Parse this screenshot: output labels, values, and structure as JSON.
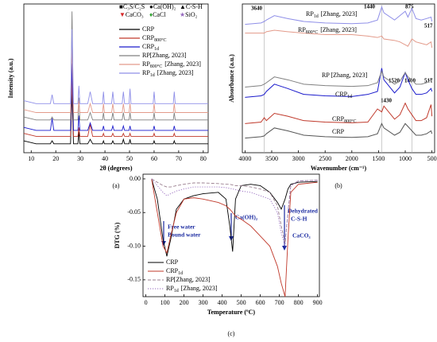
{
  "chart_data": [
    {
      "type": "line",
      "panel_label": "(a)",
      "xlabel": "2θ (degrees)",
      "ylabel": "Intensity (a.u.)",
      "xlim": [
        7,
        82
      ],
      "xticks": [
        10,
        20,
        30,
        40,
        50,
        60,
        70,
        80
      ],
      "ylim": [
        0,
        100
      ],
      "phases": [
        {
          "symbol": "■",
          "label": "C₃S/C₂S",
          "color": "#000000"
        },
        {
          "symbol": "●",
          "label": "Ca(OH)₂",
          "color": "#000000"
        },
        {
          "symbol": "▲",
          "label": "C-S-H",
          "color": "#000000"
        },
        {
          "symbol": "▼",
          "label": "CaCO₃",
          "color": "#d62728"
        },
        {
          "symbol": "♦",
          "label": "CaCl",
          "color": "#2ca02c"
        },
        {
          "symbol": "★",
          "label": "SiO₂",
          "color": "#9467bd"
        }
      ],
      "x": [
        7,
        12,
        17.8,
        18.5,
        19.2,
        26,
        26.6,
        27.2,
        29,
        29.4,
        29.8,
        33,
        34,
        35,
        39,
        39.4,
        39.8,
        42.7,
        43.2,
        43.7,
        47,
        47.5,
        48,
        49.8,
        50.2,
        50.6,
        59.6,
        60,
        60.4,
        67.8,
        68.2,
        68.6,
        75,
        82
      ],
      "series": [
        {
          "name": "CRP",
          "color": "#000000",
          "values": [
            8,
            6,
            6,
            8,
            6,
            6,
            40,
            6,
            6,
            14,
            6,
            6,
            9,
            6,
            6,
            8,
            6,
            6,
            8,
            6,
            6,
            9,
            6,
            6,
            9,
            6,
            6,
            8,
            6,
            6,
            8,
            6,
            6,
            6
          ]
        },
        {
          "name": "CRP",
          "name_sub": "800°C",
          "color": "#c0392b",
          "values": [
            13,
            11,
            11,
            11,
            11,
            11,
            49,
            11,
            11,
            17,
            11,
            11,
            19,
            11,
            11,
            13,
            11,
            11,
            13,
            11,
            11,
            13,
            11,
            11,
            13,
            11,
            11,
            13,
            11,
            11,
            13,
            11,
            11,
            11
          ]
        },
        {
          "name": "CRP",
          "name_sub": "1d",
          "color": "#1a1acc",
          "values": [
            17,
            15,
            15,
            23,
            15,
            15,
            60,
            15,
            15,
            25,
            15,
            15,
            20,
            15,
            15,
            18,
            15,
            15,
            18,
            15,
            15,
            18,
            15,
            15,
            18,
            15,
            15,
            18,
            15,
            15,
            18,
            15,
            15,
            15
          ]
        },
        {
          "name": "RP[Zhang, 2023]",
          "color": "#808080",
          "values": [
            24,
            22,
            22,
            24,
            22,
            22,
            95,
            22,
            22,
            37,
            22,
            22,
            27,
            22,
            22,
            27,
            22,
            22,
            27,
            22,
            22,
            27,
            22,
            22,
            27,
            22,
            22,
            27,
            22,
            22,
            27,
            22,
            22,
            22
          ]
        },
        {
          "name": "RP",
          "name_sub": "800°C",
          "name_suffix": "[Zhang, 2023]",
          "color": "#e39a8a",
          "values": [
            29,
            27,
            27,
            27,
            27,
            27,
            72,
            27,
            27,
            35,
            27,
            27,
            33,
            27,
            27,
            33,
            27,
            27,
            33,
            27,
            27,
            33,
            27,
            27,
            33,
            27,
            27,
            33,
            27,
            27,
            33,
            27,
            27,
            27
          ]
        },
        {
          "name": "RP",
          "name_sub": "1d",
          "name_suffix": "[Zhang, 2023]",
          "color": "#8f8fe8",
          "values": [
            35,
            33,
            33,
            39,
            33,
            33,
            83,
            33,
            33,
            45,
            33,
            33,
            41,
            33,
            33,
            41,
            33,
            33,
            41,
            33,
            33,
            41,
            33,
            33,
            43,
            33,
            33,
            41,
            33,
            33,
            41,
            33,
            33,
            33
          ]
        }
      ]
    },
    {
      "type": "line",
      "panel_label": "(b)",
      "xlabel": "Wavenumber (cm⁻¹)",
      "ylabel": "Absorbance (a.u.)",
      "xlim": [
        4050,
        450
      ],
      "xticks": [
        4000,
        3500,
        3000,
        2500,
        2000,
        1500,
        1000,
        500
      ],
      "ylim": [
        0,
        102
      ],
      "reference_lines": [
        3640,
        1440,
        875
      ],
      "annotations": [
        "3640",
        "1440",
        "875",
        "517",
        "1520",
        "1400",
        "517",
        "1430"
      ],
      "x": [
        4000,
        3700,
        3640,
        3600,
        3450,
        3200,
        2900,
        2500,
        2000,
        1700,
        1520,
        1440,
        1400,
        1200,
        1100,
        1000,
        950,
        875,
        800,
        700,
        600,
        517,
        500
      ],
      "series": [
        {
          "name": "CRP",
          "color": "#555555",
          "values": [
            10,
            11,
            11.5,
            13,
            17,
            15,
            12,
            11,
            10.5,
            11,
            13,
            20,
            17,
            12,
            14,
            20,
            18,
            15,
            12,
            12,
            13,
            15,
            13
          ]
        },
        {
          "name": "CRP",
          "name_sub": "800°C",
          "color": "#c0392b",
          "values": [
            20,
            21,
            24,
            22,
            27,
            25,
            22,
            21,
            20.5,
            21,
            30,
            28,
            32,
            23,
            26,
            34,
            30,
            26,
            22,
            22,
            24,
            33,
            25
          ]
        },
        {
          "name": "CRP",
          "name_sub": "1d",
          "color": "#1a1acc",
          "values": [
            38,
            39,
            40,
            42,
            47,
            44,
            40,
            39,
            38.5,
            40,
            42,
            58,
            50,
            41,
            45,
            55,
            50,
            44,
            40,
            40,
            41,
            44,
            42
          ]
        },
        {
          "name": "RP [Zhang, 2023]",
          "color": "#808080",
          "values": [
            45,
            46,
            47,
            48,
            52,
            50,
            47,
            46,
            45.5,
            46,
            48,
            56,
            52,
            47,
            49,
            55,
            52,
            50,
            47,
            47,
            48,
            50,
            48
          ]
        },
        {
          "name": "RP",
          "name_sub": "800°C",
          "name_suffix": "[Zhang, 2023]",
          "color": "#e39a8a",
          "values": [
            82,
            82,
            82,
            83,
            84,
            83,
            82,
            81,
            81,
            80,
            79,
            80,
            78,
            77,
            76,
            74,
            73,
            78,
            76,
            75,
            74,
            76,
            72
          ]
        },
        {
          "name": "RP",
          "name_sub": "1d",
          "name_suffix": "[Zhang, 2023]",
          "color": "#8f8fe8",
          "values": [
            88,
            89,
            90,
            91,
            94,
            92,
            90,
            89,
            88.5,
            89,
            91,
            100,
            96,
            91,
            94,
            97,
            93,
            99,
            92,
            91,
            92,
            93,
            90
          ]
        }
      ]
    },
    {
      "type": "line",
      "panel_label": "(c)",
      "xlabel": "Temperature (ºC)",
      "ylabel": "DTG (%)",
      "xlim": [
        -15,
        910
      ],
      "xticks": [
        0,
        100,
        200,
        300,
        400,
        500,
        600,
        700,
        800,
        900
      ],
      "ylim": [
        -0.175,
        0.007
      ],
      "yticks": [
        {
          "value": -0.15,
          "label": "-0.15"
        },
        {
          "value": -0.1,
          "label": "-0.10"
        },
        {
          "value": -0.05,
          "label": "-0.05"
        },
        {
          "value": 0,
          "label": "0.00"
        }
      ],
      "annotations": [
        "Free water",
        "Bound water",
        "Ca(OH)₂",
        "Dehydrated",
        "C-S-H",
        "CaCO₃"
      ],
      "x": [
        30,
        60,
        90,
        110,
        130,
        160,
        200,
        250,
        300,
        380,
        420,
        440,
        455,
        470,
        500,
        550,
        600,
        650,
        690,
        710,
        730,
        745,
        760,
        800,
        900
      ],
      "series": [
        {
          "name": "CRP",
          "color": "#000000",
          "dash": "solid",
          "values": [
            0,
            -0.03,
            -0.09,
            -0.115,
            -0.09,
            -0.045,
            -0.03,
            -0.025,
            -0.022,
            -0.02,
            -0.03,
            -0.07,
            -0.108,
            -0.03,
            -0.01,
            -0.008,
            -0.01,
            -0.02,
            -0.035,
            -0.045,
            -0.03,
            -0.015,
            -0.008,
            -0.005,
            -0.004
          ]
        },
        {
          "name": "CRP",
          "name_sub": "1d",
          "color": "#c0392b",
          "dash": "solid",
          "values": [
            0,
            -0.05,
            -0.1,
            -0.11,
            -0.085,
            -0.05,
            -0.03,
            -0.028,
            -0.03,
            -0.035,
            -0.04,
            -0.045,
            -0.05,
            -0.055,
            -0.06,
            -0.07,
            -0.085,
            -0.1,
            -0.13,
            -0.155,
            -0.175,
            -0.09,
            -0.02,
            -0.008,
            -0.005
          ]
        },
        {
          "name": "RP[Zhang, 2023]",
          "color": "#9a7f8f",
          "dash": "dashed",
          "values": [
            0,
            -0.005,
            -0.01,
            -0.012,
            -0.012,
            -0.01,
            -0.008,
            -0.006,
            -0.006,
            -0.007,
            -0.008,
            -0.008,
            -0.009,
            -0.01,
            -0.01,
            -0.012,
            -0.015,
            -0.02,
            -0.04,
            -0.07,
            -0.095,
            -0.05,
            -0.01,
            -0.003,
            -0.002
          ]
        },
        {
          "name": "RP",
          "name_sub": "1d",
          "name_suffix": "[Zhang, 2023]",
          "color": "#9467bd",
          "dash": "dotted",
          "values": [
            0,
            -0.01,
            -0.02,
            -0.025,
            -0.022,
            -0.018,
            -0.015,
            -0.012,
            -0.012,
            -0.012,
            -0.013,
            -0.014,
            -0.015,
            -0.016,
            -0.018,
            -0.02,
            -0.025,
            -0.03,
            -0.05,
            -0.08,
            -0.1,
            -0.05,
            -0.01,
            -0.003,
            -0.002
          ]
        }
      ]
    }
  ]
}
